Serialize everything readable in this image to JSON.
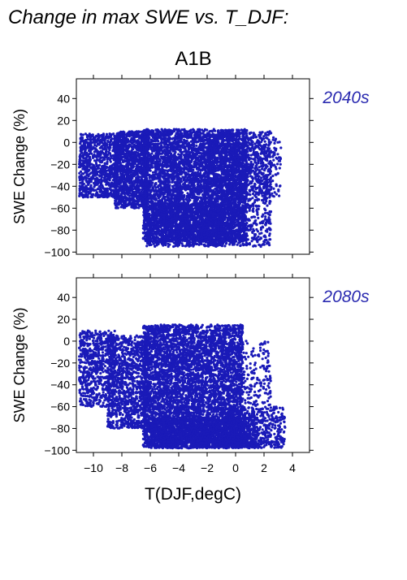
{
  "header": {
    "title": "Change in max SWE vs. T_DJF:",
    "scenario": "A1B"
  },
  "colors": {
    "points": "#1a1ab8",
    "period_label": "#2a2ab0",
    "axis": "#000000",
    "background": "#ffffff"
  },
  "chart_data": [
    {
      "type": "scatter",
      "period_label": "2040s",
      "ylabel": "SWE Change (%)",
      "xlabel": "",
      "xlim": [
        -11.2,
        5.2
      ],
      "ylim": [
        -102,
        58
      ],
      "xticks": [
        -10,
        -8,
        -6,
        -4,
        -2,
        0,
        2,
        4
      ],
      "yticks": [
        -100,
        -80,
        -60,
        -40,
        -20,
        0,
        20,
        40
      ],
      "grid": false,
      "series": [
        {
          "clusters": [
            {
              "x": [
                -11,
                -8.3
              ],
              "y": [
                -50,
                8
              ],
              "n": 900
            },
            {
              "x": [
                -8.5,
                -6.2
              ],
              "y": [
                -60,
                10
              ],
              "n": 1300
            },
            {
              "x": [
                -6.5,
                0.8
              ],
              "y": [
                -90,
                12
              ],
              "n": 5200
            },
            {
              "x": [
                -6.3,
                -1
              ],
              "y": [
                -95,
                -55
              ],
              "n": 1000
            },
            {
              "x": [
                -2,
                2.5
              ],
              "y": [
                -95,
                10
              ],
              "n": 1300
            },
            {
              "x": [
                0.5,
                3.2
              ],
              "y": [
                -50,
                5
              ],
              "n": 250
            }
          ]
        }
      ]
    },
    {
      "type": "scatter",
      "period_label": "2080s",
      "ylabel": "SWE Change (%)",
      "xlabel": "T(DJF,degC)",
      "xlim": [
        -11.2,
        5.2
      ],
      "ylim": [
        -102,
        58
      ],
      "xticks": [
        -10,
        -8,
        -6,
        -4,
        -2,
        0,
        2,
        4
      ],
      "yticks": [
        -100,
        -80,
        -60,
        -40,
        -20,
        0,
        20,
        40
      ],
      "grid": false,
      "series": [
        {
          "clusters": [
            {
              "x": [
                -11,
                -8.5
              ],
              "y": [
                -60,
                10
              ],
              "n": 700
            },
            {
              "x": [
                -9,
                -6
              ],
              "y": [
                -80,
                5
              ],
              "n": 1200
            },
            {
              "x": [
                -6.5,
                0.5
              ],
              "y": [
                -98,
                15
              ],
              "n": 5200
            },
            {
              "x": [
                -6,
                1.5
              ],
              "y": [
                -98,
                -70
              ],
              "n": 1500
            },
            {
              "x": [
                -1,
                3.5
              ],
              "y": [
                -98,
                -60
              ],
              "n": 600
            },
            {
              "x": [
                0,
                2.5
              ],
              "y": [
                -60,
                0
              ],
              "n": 200
            }
          ]
        }
      ]
    }
  ]
}
